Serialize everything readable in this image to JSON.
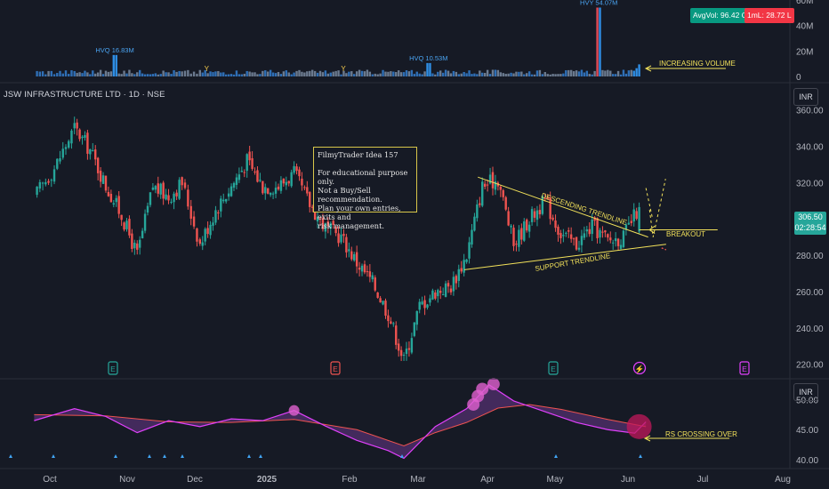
{
  "header": {
    "symbol": "JSW INFRASTRUCTURE LTD · 1D · NSE"
  },
  "currency_top": "INR",
  "currency_bottom": "INR",
  "badges": {
    "avg_vol": "AvgVol: 96.42 Cr",
    "one_ml": "1mL: 28.72 L",
    "avg_color": "#089981",
    "ml_color": "#f23645"
  },
  "price_label": {
    "value": "306.50",
    "countdown": "02:28:54"
  },
  "note": {
    "title": "FilmyTrader Idea 157",
    "lines": [
      "For educational purpose only.",
      "Not a Buy/Sell recommendation.",
      "Plan your own entries, exits and",
      "risk management."
    ]
  },
  "annotations": {
    "increasing_volume": "INCREASING VOLUME",
    "descending": "DESCENDING TRENDLINE",
    "support": "SUPPORT TRENDLINE",
    "breakout": "BREAKOUT",
    "rs_cross": "RS CROSSING OVER",
    "color": "#f2e15a"
  },
  "volume_labels": [
    "HVQ 16.83M",
    "HVQ 10.53M",
    "HVY 54.07M"
  ],
  "event_markers": [
    "E",
    "E",
    "E",
    "⚡",
    "E"
  ],
  "y_markers": [
    "Y",
    "Y"
  ],
  "chart_data": [
    {
      "type": "candlestick",
      "title": "JSW INFRASTRUCTURE LTD · 1D · NSE",
      "x_tick_labels": [
        "Oct",
        "Nov",
        "Dec",
        "2025",
        "Feb",
        "Mar",
        "Apr",
        "May",
        "Jun",
        "Jul",
        "Aug"
      ],
      "y_tick_labels": [
        360,
        340,
        320,
        300,
        280,
        260,
        240,
        220
      ],
      "ylim": [
        212,
        374
      ],
      "x_range_months": [
        "Sep 2024",
        "Aug 2025"
      ],
      "close_path": [
        {
          "date": "2024-09-09",
          "close": 312
        },
        {
          "date": "2024-09-18",
          "close": 328
        },
        {
          "date": "2024-09-27",
          "close": 350
        },
        {
          "date": "2024-10-04",
          "close": 338
        },
        {
          "date": "2024-10-11",
          "close": 318
        },
        {
          "date": "2024-10-18",
          "close": 302
        },
        {
          "date": "2024-10-25",
          "close": 280
        },
        {
          "date": "2024-11-01",
          "close": 318
        },
        {
          "date": "2024-11-08",
          "close": 312
        },
        {
          "date": "2024-11-14",
          "close": 320
        },
        {
          "date": "2024-11-22",
          "close": 286
        },
        {
          "date": "2024-11-29",
          "close": 305
        },
        {
          "date": "2024-12-06",
          "close": 318
        },
        {
          "date": "2024-12-13",
          "close": 332
        },
        {
          "date": "2024-12-20",
          "close": 318
        },
        {
          "date": "2024-12-27",
          "close": 318
        },
        {
          "date": "2025-01-03",
          "close": 325
        },
        {
          "date": "2025-01-10",
          "close": 308
        },
        {
          "date": "2025-01-17",
          "close": 295
        },
        {
          "date": "2025-01-24",
          "close": 290
        },
        {
          "date": "2025-01-31",
          "close": 276
        },
        {
          "date": "2025-02-07",
          "close": 265
        },
        {
          "date": "2025-02-14",
          "close": 248
        },
        {
          "date": "2025-02-21",
          "close": 222
        },
        {
          "date": "2025-02-28",
          "close": 252
        },
        {
          "date": "2025-03-07",
          "close": 260
        },
        {
          "date": "2025-03-14",
          "close": 263
        },
        {
          "date": "2025-03-21",
          "close": 280
        },
        {
          "date": "2025-03-28",
          "close": 318
        },
        {
          "date": "2025-04-04",
          "close": 322
        },
        {
          "date": "2025-04-11",
          "close": 286
        },
        {
          "date": "2025-04-18",
          "close": 300
        },
        {
          "date": "2025-04-25",
          "close": 310
        },
        {
          "date": "2025-05-02",
          "close": 292
        },
        {
          "date": "2025-05-09",
          "close": 286
        },
        {
          "date": "2025-05-16",
          "close": 296
        },
        {
          "date": "2025-05-23",
          "close": 288
        },
        {
          "date": "2025-05-30",
          "close": 290
        },
        {
          "date": "2025-06-06",
          "close": 306.5
        }
      ],
      "trendlines": [
        {
          "name": "DESCENDING TRENDLINE",
          "from": {
            "date": "2025-03-26",
            "price": 323
          },
          "to": {
            "date": "2025-06-10",
            "price": 290
          }
        },
        {
          "name": "SUPPORT TRENDLINE",
          "from": {
            "date": "2025-03-20",
            "price": 272
          },
          "to": {
            "date": "2025-06-18",
            "price": 286
          }
        },
        {
          "name": "BREAKOUT",
          "level": 294
        }
      ]
    },
    {
      "type": "bar",
      "title": "Volume",
      "y_tick_labels": [
        "60M",
        "40M",
        "20M",
        "0"
      ],
      "ylim": [
        0,
        60
      ],
      "highlights": [
        {
          "label": "HVQ 16.83M",
          "date": "2024-10-15",
          "value": 16.83
        },
        {
          "label": "HVQ 10.53M",
          "date": "2025-03-04",
          "value": 10.53
        },
        {
          "label": "HVY 54.07M",
          "date": "2025-05-19",
          "value": 54.07
        }
      ]
    },
    {
      "type": "line",
      "title": "RS",
      "y_tick_labels": [
        "50.00",
        "45.00",
        "40.00"
      ],
      "ylim": [
        38.5,
        53.5
      ],
      "series": [
        {
          "name": "",
          "values": [
            {
              "date": "2024-09-09",
              "value": 46.5
            },
            {
              "date": "2024-09-27",
              "value": 48.5
            },
            {
              "date": "2024-10-11",
              "value": 47.2
            },
            {
              "date": "2024-10-25",
              "value": 44.5
            },
            {
              "date": "2024-11-08",
              "value": 46.5
            },
            {
              "date": "2024-11-22",
              "value": 45.5
            },
            {
              "date": "2024-12-06",
              "value": 46.8
            },
            {
              "date": "2024-12-20",
              "value": 46.5
            },
            {
              "date": "2025-01-03",
              "value": 48.2
            },
            {
              "date": "2025-01-17",
              "value": 45.6
            },
            {
              "date": "2025-01-31",
              "value": 43.2
            },
            {
              "date": "2025-02-14",
              "value": 41.5
            },
            {
              "date": "2025-02-21",
              "value": 40.2
            },
            {
              "date": "2025-03-07",
              "value": 45.5
            },
            {
              "date": "2025-03-21",
              "value": 48.5
            },
            {
              "date": "2025-03-31",
              "value": 52.5
            },
            {
              "date": "2025-04-11",
              "value": 49.8
            },
            {
              "date": "2025-04-25",
              "value": 48.0
            },
            {
              "date": "2025-05-09",
              "value": 46.2
            },
            {
              "date": "2025-05-23",
              "value": 45.0
            },
            {
              "date": "2025-06-04",
              "value": 44.4
            },
            {
              "date": "2025-06-09",
              "value": 46.3
            }
          ]
        },
        {
          "name": "",
          "values": [
            {
              "date": "2024-09-09",
              "value": 47.5
            },
            {
              "date": "2024-10-11",
              "value": 47.3
            },
            {
              "date": "2024-11-08",
              "value": 46.3
            },
            {
              "date": "2024-12-06",
              "value": 46.2
            },
            {
              "date": "2025-01-03",
              "value": 46.7
            },
            {
              "date": "2025-01-31",
              "value": 45.0
            },
            {
              "date": "2025-02-21",
              "value": 42.3
            },
            {
              "date": "2025-03-07",
              "value": 44.5
            },
            {
              "date": "2025-03-21",
              "value": 46.2
            },
            {
              "date": "2025-04-04",
              "value": 48.6
            },
            {
              "date": "2025-04-18",
              "value": 49.2
            },
            {
              "date": "2025-05-02",
              "value": 48.4
            },
            {
              "date": "2025-05-23",
              "value": 46.7
            },
            {
              "date": "2025-06-09",
              "value": 45.5
            }
          ]
        }
      ]
    }
  ]
}
